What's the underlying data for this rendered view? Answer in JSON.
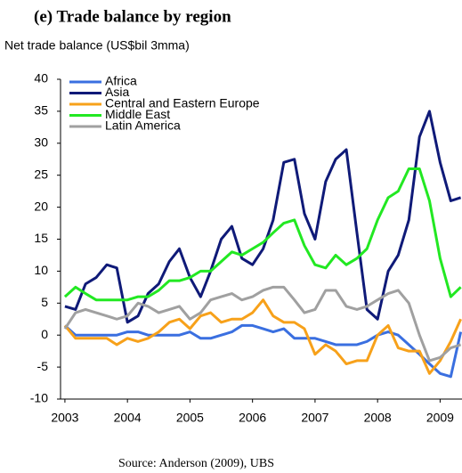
{
  "chart_data": {
    "type": "line",
    "title": "(e) Trade balance by region",
    "subtitle": "Net trade balance (US$bil 3mma)",
    "source": "Source: Anderson (2009), UBS",
    "x": [
      2003.0,
      2003.17,
      2003.33,
      2003.5,
      2003.67,
      2003.83,
      2004.0,
      2004.17,
      2004.33,
      2004.5,
      2004.67,
      2004.83,
      2005.0,
      2005.17,
      2005.33,
      2005.5,
      2005.67,
      2005.83,
      2006.0,
      2006.17,
      2006.33,
      2006.5,
      2006.67,
      2006.83,
      2007.0,
      2007.17,
      2007.33,
      2007.5,
      2007.67,
      2007.83,
      2008.0,
      2008.17,
      2008.33,
      2008.5,
      2008.67,
      2008.83,
      2009.0,
      2009.17,
      2009.33
    ],
    "series": [
      {
        "name": "Africa",
        "color": "#3a6fe0",
        "values": [
          1.5,
          0,
          0,
          0,
          0,
          0,
          0.5,
          0.5,
          0,
          0,
          0,
          0,
          0.5,
          -0.5,
          -0.5,
          0,
          0.5,
          1.5,
          1.5,
          1,
          0.5,
          1,
          -0.5,
          -0.5,
          -0.5,
          -1,
          -1.5,
          -1.5,
          -1.5,
          -1,
          0,
          0.5,
          0,
          -1.5,
          -3,
          -4.5,
          -6,
          -6.5,
          0.5
        ]
      },
      {
        "name": "Asia",
        "color": "#0f1a78",
        "values": [
          4.5,
          4,
          8,
          9,
          11,
          10.5,
          2,
          3,
          6.5,
          8,
          11.5,
          13.5,
          9,
          6,
          10,
          15,
          17,
          12,
          11,
          13.5,
          18,
          27,
          27.5,
          19,
          15,
          24,
          27.5,
          29,
          16,
          4,
          2.5,
          10,
          12.5,
          18,
          31,
          35,
          27,
          21,
          21.5
        ]
      },
      {
        "name": "Central and Eastern Europe",
        "color": "#f7a11a",
        "values": [
          1.5,
          -0.5,
          -0.5,
          -0.5,
          -0.5,
          -1.5,
          -0.5,
          -1,
          -0.5,
          0.5,
          2,
          2.5,
          1,
          3,
          3.5,
          2,
          2.5,
          2.5,
          3.5,
          5.5,
          3,
          2,
          2,
          1,
          -3,
          -1.5,
          -2.5,
          -4.5,
          -4,
          -4,
          0,
          1.5,
          -2,
          -2.5,
          -2.5,
          -6,
          -4,
          -1,
          2.5
        ]
      },
      {
        "name": "Middle East",
        "color": "#22e822",
        "values": [
          6,
          7.5,
          6.5,
          5.5,
          5.5,
          5.5,
          5.5,
          6,
          6,
          7,
          8.5,
          8.5,
          9,
          10,
          10,
          11.5,
          13,
          12.5,
          13.5,
          14.5,
          16,
          17.5,
          18,
          14,
          11,
          10.5,
          12.5,
          11,
          12,
          13.5,
          18,
          21.5,
          22.5,
          26,
          26,
          21,
          12,
          6,
          7.5
        ]
      },
      {
        "name": "Latin America",
        "color": "#a0a0a0",
        "values": [
          1,
          3.5,
          4,
          3.5,
          3,
          2.5,
          3,
          5,
          4.5,
          3.5,
          4,
          4.5,
          2.5,
          3.5,
          5.5,
          6,
          6.5,
          5.5,
          6,
          7,
          7.5,
          7.5,
          5.5,
          3.5,
          4,
          7,
          7,
          4.5,
          4,
          4.5,
          5.5,
          6.5,
          7,
          5,
          0,
          -4,
          -3.5,
          -2,
          -1.5
        ]
      }
    ],
    "xlim": [
      2002.93,
      2009.35
    ],
    "ylim": [
      -10,
      40
    ],
    "xticks": [
      2003,
      2004,
      2005,
      2006,
      2007,
      2008,
      2009
    ],
    "yticks": [
      -10,
      -5,
      0,
      5,
      10,
      15,
      20,
      25,
      30,
      35,
      40
    ],
    "grid": false,
    "legend": "upper left"
  }
}
